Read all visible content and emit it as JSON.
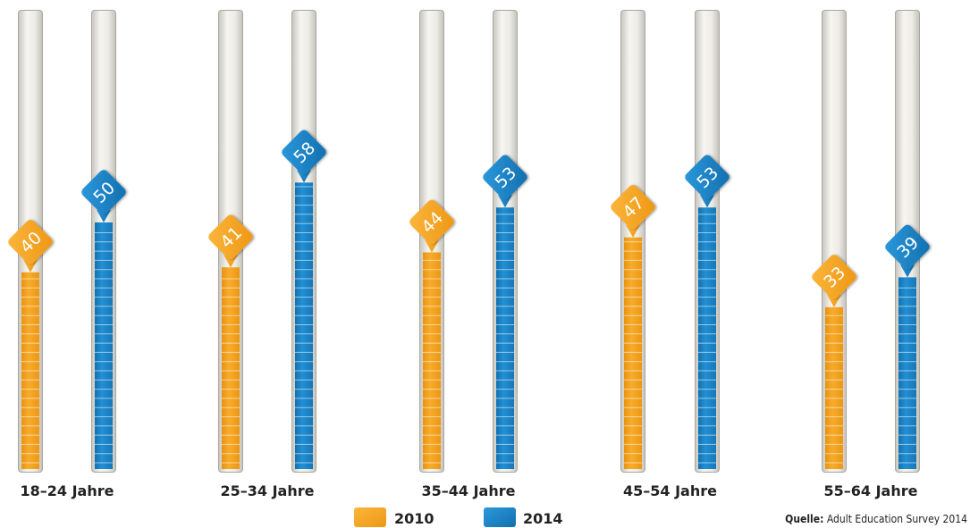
{
  "chart_data": {
    "type": "bar",
    "categories": [
      "18–24 Jahre",
      "25–34 Jahre",
      "35–44 Jahre",
      "45–54 Jahre",
      "55–64 Jahre"
    ],
    "series": [
      {
        "name": "2010",
        "values": [
          40,
          41,
          44,
          47,
          33
        ],
        "color": "#f5a11c"
      },
      {
        "name": "2014",
        "values": [
          50,
          58,
          53,
          53,
          39
        ],
        "color": "#1a7fc1"
      }
    ],
    "ylim": [
      0,
      100
    ],
    "grid": false,
    "legend": "bottom-center"
  },
  "source": {
    "prefix": "Quelle:",
    "text": "Adult Education Survey 2014"
  }
}
